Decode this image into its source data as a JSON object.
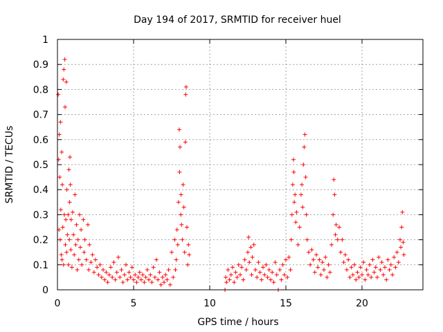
{
  "chart_data": {
    "type": "scatter",
    "title": "Day 194 of 2017, SRMTID for receiver huel",
    "xlabel": "GPS time / hours",
    "ylabel": "SRMTID / TECUs",
    "xlim": [
      0,
      24
    ],
    "ylim": [
      0,
      1
    ],
    "x_ticks": [
      0,
      5,
      10,
      15,
      20
    ],
    "x_tick_labels": [
      "0",
      "5",
      "10",
      "15",
      "20"
    ],
    "y_ticks": [
      0,
      0.1,
      0.2,
      0.3,
      0.4,
      0.5,
      0.6,
      0.7,
      0.8,
      0.9,
      1
    ],
    "y_tick_labels": [
      "0",
      "0.1",
      "0.2",
      "0.3",
      "0.4",
      "0.5",
      "0.6",
      "0.7",
      "0.8",
      "0.9",
      "1"
    ],
    "grid": true,
    "marker": "+",
    "color": "#ff0000",
    "series": [
      {
        "name": "SRMTID",
        "points": [
          [
            0.05,
            0.78
          ],
          [
            0.08,
            0.52
          ],
          [
            0.1,
            0.24
          ],
          [
            0.12,
            0.62
          ],
          [
            0.15,
            0.45
          ],
          [
            0.18,
            0.2
          ],
          [
            0.2,
            0.67
          ],
          [
            0.22,
            0.32
          ],
          [
            0.25,
            0.14
          ],
          [
            0.28,
            0.55
          ],
          [
            0.3,
            0.12
          ],
          [
            0.32,
            0.42
          ],
          [
            0.35,
            0.25
          ],
          [
            0.38,
            0.84
          ],
          [
            0.4,
            0.1
          ],
          [
            0.42,
            0.88
          ],
          [
            0.45,
            0.3
          ],
          [
            0.48,
            0.92
          ],
          [
            0.5,
            0.73
          ],
          [
            0.52,
            0.18
          ],
          [
            0.55,
            0.28
          ],
          [
            0.58,
            0.83
          ],
          [
            0.6,
            0.15
          ],
          [
            0.62,
            0.4
          ],
          [
            0.65,
            0.22
          ],
          [
            0.7,
            0.3
          ],
          [
            0.72,
            0.1
          ],
          [
            0.75,
            0.48
          ],
          [
            0.78,
            0.2
          ],
          [
            0.8,
            0.35
          ],
          [
            0.82,
            0.53
          ],
          [
            0.85,
            0.42
          ],
          [
            0.88,
            0.16
          ],
          [
            0.9,
            0.28
          ],
          [
            0.95,
            0.09
          ],
          [
            1.0,
            0.31
          ],
          [
            1.05,
            0.22
          ],
          [
            1.1,
            0.14
          ],
          [
            1.15,
            0.38
          ],
          [
            1.2,
            0.18
          ],
          [
            1.25,
            0.26
          ],
          [
            1.3,
            0.08
          ],
          [
            1.35,
            0.2
          ],
          [
            1.4,
            0.12
          ],
          [
            1.45,
            0.3
          ],
          [
            1.5,
            0.17
          ],
          [
            1.55,
            0.24
          ],
          [
            1.6,
            0.1
          ],
          [
            1.7,
            0.28
          ],
          [
            1.75,
            0.15
          ],
          [
            1.8,
            0.2
          ],
          [
            1.9,
            0.12
          ],
          [
            2.0,
            0.26
          ],
          [
            2.05,
            0.08
          ],
          [
            2.1,
            0.18
          ],
          [
            2.2,
            0.11
          ],
          [
            2.3,
            0.14
          ],
          [
            2.4,
            0.07
          ],
          [
            2.5,
            0.12
          ],
          [
            2.6,
            0.09
          ],
          [
            2.7,
            0.06
          ],
          [
            2.8,
            0.1
          ],
          [
            2.9,
            0.05
          ],
          [
            3.0,
            0.08
          ],
          [
            3.1,
            0.04
          ],
          [
            3.2,
            0.07
          ],
          [
            3.3,
            0.03
          ],
          [
            3.4,
            0.06
          ],
          [
            3.5,
            0.09
          ],
          [
            3.6,
            0.05
          ],
          [
            3.7,
            0.11
          ],
          [
            3.8,
            0.04
          ],
          [
            3.9,
            0.07
          ],
          [
            4.0,
            0.13
          ],
          [
            4.1,
            0.05
          ],
          [
            4.2,
            0.08
          ],
          [
            4.3,
            0.03
          ],
          [
            4.4,
            0.06
          ],
          [
            4.5,
            0.1
          ],
          [
            4.6,
            0.04
          ],
          [
            4.7,
            0.07
          ],
          [
            4.8,
            0.05
          ],
          [
            4.9,
            0.09
          ],
          [
            5.0,
            0.04
          ],
          [
            5.1,
            0.06
          ],
          [
            5.2,
            0.03
          ],
          [
            5.3,
            0.05
          ],
          [
            5.4,
            0.07
          ],
          [
            5.5,
            0.04
          ],
          [
            5.6,
            0.06
          ],
          [
            5.7,
            0.03
          ],
          [
            5.8,
            0.05
          ],
          [
            5.9,
            0.08
          ],
          [
            6.0,
            0.04
          ],
          [
            6.1,
            0.06
          ],
          [
            6.2,
            0.03
          ],
          [
            6.3,
            0.09
          ],
          [
            6.4,
            0.05
          ],
          [
            6.5,
            0.12
          ],
          [
            6.6,
            0.04
          ],
          [
            6.7,
            0.07
          ],
          [
            6.8,
            0.02
          ],
          [
            6.9,
            0.05
          ],
          [
            7.0,
            0.03
          ],
          [
            7.1,
            0.06
          ],
          [
            7.2,
            0.04
          ],
          [
            7.3,
            0.08
          ],
          [
            7.4,
            0.02
          ],
          [
            7.5,
            0.15
          ],
          [
            7.6,
            0.05
          ],
          [
            7.7,
            0.2
          ],
          [
            7.75,
            0.08
          ],
          [
            7.8,
            0.12
          ],
          [
            7.85,
            0.24
          ],
          [
            7.9,
            0.18
          ],
          [
            7.95,
            0.35
          ],
          [
            8.0,
            0.64
          ],
          [
            8.02,
            0.47
          ],
          [
            8.05,
            0.57
          ],
          [
            8.1,
            0.3
          ],
          [
            8.12,
            0.38
          ],
          [
            8.15,
            0.26
          ],
          [
            8.2,
            0.2
          ],
          [
            8.25,
            0.42
          ],
          [
            8.3,
            0.33
          ],
          [
            8.35,
            0.15
          ],
          [
            8.4,
            0.59
          ],
          [
            8.42,
            0.78
          ],
          [
            8.45,
            0.81
          ],
          [
            8.5,
            0.25
          ],
          [
            8.55,
            0.1
          ],
          [
            8.6,
            0.18
          ],
          [
            8.65,
            0.14
          ],
          [
            11.0,
            0.0
          ],
          [
            11.05,
            0.05
          ],
          [
            11.1,
            0.03
          ],
          [
            11.2,
            0.08
          ],
          [
            11.3,
            0.04
          ],
          [
            11.4,
            0.06
          ],
          [
            11.5,
            0.09
          ],
          [
            11.6,
            0.03
          ],
          [
            11.7,
            0.07
          ],
          [
            11.8,
            0.05
          ],
          [
            11.9,
            0.1
          ],
          [
            12.0,
            0.06
          ],
          [
            12.1,
            0.09
          ],
          [
            12.2,
            0.04
          ],
          [
            12.3,
            0.12
          ],
          [
            12.4,
            0.08
          ],
          [
            12.5,
            0.15
          ],
          [
            12.55,
            0.21
          ],
          [
            12.6,
            0.11
          ],
          [
            12.7,
            0.17
          ],
          [
            12.75,
            0.06
          ],
          [
            12.8,
            0.13
          ],
          [
            12.9,
            0.18
          ],
          [
            13.0,
            0.08
          ],
          [
            13.1,
            0.05
          ],
          [
            13.2,
            0.11
          ],
          [
            13.3,
            0.07
          ],
          [
            13.4,
            0.04
          ],
          [
            13.5,
            0.09
          ],
          [
            13.6,
            0.06
          ],
          [
            13.7,
            0.1
          ],
          [
            13.8,
            0.05
          ],
          [
            13.9,
            0.08
          ],
          [
            14.0,
            0.04
          ],
          [
            14.1,
            0.07
          ],
          [
            14.2,
            0.03
          ],
          [
            14.3,
            0.11
          ],
          [
            14.4,
            0.06
          ],
          [
            14.5,
            0.0
          ],
          [
            14.6,
            0.08
          ],
          [
            14.7,
            0.04
          ],
          [
            14.8,
            0.1
          ],
          [
            14.9,
            0.06
          ],
          [
            15.0,
            0.12
          ],
          [
            15.1,
            0.05
          ],
          [
            15.2,
            0.13
          ],
          [
            15.3,
            0.08
          ],
          [
            15.35,
            0.2
          ],
          [
            15.4,
            0.3
          ],
          [
            15.45,
            0.42
          ],
          [
            15.5,
            0.52
          ],
          [
            15.52,
            0.47
          ],
          [
            15.55,
            0.35
          ],
          [
            15.6,
            0.38
          ],
          [
            15.65,
            0.27
          ],
          [
            15.7,
            0.31
          ],
          [
            15.8,
            0.18
          ],
          [
            15.9,
            0.25
          ],
          [
            16.0,
            0.38
          ],
          [
            16.05,
            0.42
          ],
          [
            16.1,
            0.33
          ],
          [
            16.15,
            0.5
          ],
          [
            16.2,
            0.57
          ],
          [
            16.25,
            0.62
          ],
          [
            16.3,
            0.45
          ],
          [
            16.35,
            0.3
          ],
          [
            16.4,
            0.2
          ],
          [
            16.5,
            0.15
          ],
          [
            16.6,
            0.1
          ],
          [
            16.7,
            0.16
          ],
          [
            16.8,
            0.12
          ],
          [
            16.9,
            0.07
          ],
          [
            17.0,
            0.14
          ],
          [
            17.1,
            0.09
          ],
          [
            17.2,
            0.12
          ],
          [
            17.3,
            0.06
          ],
          [
            17.4,
            0.11
          ],
          [
            17.5,
            0.08
          ],
          [
            17.6,
            0.13
          ],
          [
            17.7,
            0.05
          ],
          [
            17.8,
            0.1
          ],
          [
            17.9,
            0.07
          ],
          [
            18.0,
            0.18
          ],
          [
            18.1,
            0.3
          ],
          [
            18.15,
            0.44
          ],
          [
            18.2,
            0.38
          ],
          [
            18.25,
            0.22
          ],
          [
            18.3,
            0.26
          ],
          [
            18.4,
            0.2
          ],
          [
            18.5,
            0.25
          ],
          [
            18.6,
            0.15
          ],
          [
            18.7,
            0.2
          ],
          [
            18.8,
            0.11
          ],
          [
            18.9,
            0.14
          ],
          [
            19.0,
            0.08
          ],
          [
            19.1,
            0.12
          ],
          [
            19.2,
            0.05
          ],
          [
            19.3,
            0.09
          ],
          [
            19.4,
            0.06
          ],
          [
            19.5,
            0.1
          ],
          [
            19.6,
            0.04
          ],
          [
            19.7,
            0.07
          ],
          [
            19.8,
            0.05
          ],
          [
            19.9,
            0.09
          ],
          [
            20.0,
            0.06
          ],
          [
            20.1,
            0.11
          ],
          [
            20.2,
            0.04
          ],
          [
            20.3,
            0.08
          ],
          [
            20.4,
            0.06
          ],
          [
            20.5,
            0.1
          ],
          [
            20.6,
            0.05
          ],
          [
            20.7,
            0.12
          ],
          [
            20.8,
            0.07
          ],
          [
            20.9,
            0.09
          ],
          [
            21.0,
            0.05
          ],
          [
            21.1,
            0.13
          ],
          [
            21.2,
            0.08
          ],
          [
            21.3,
            0.11
          ],
          [
            21.4,
            0.06
          ],
          [
            21.5,
            0.09
          ],
          [
            21.6,
            0.04
          ],
          [
            21.7,
            0.12
          ],
          [
            21.8,
            0.08
          ],
          [
            21.9,
            0.1
          ],
          [
            22.0,
            0.06
          ],
          [
            22.1,
            0.13
          ],
          [
            22.2,
            0.09
          ],
          [
            22.3,
            0.15
          ],
          [
            22.4,
            0.11
          ],
          [
            22.5,
            0.2
          ],
          [
            22.55,
            0.17
          ],
          [
            22.6,
            0.25
          ],
          [
            22.65,
            0.31
          ],
          [
            22.7,
            0.19
          ],
          [
            22.75,
            0.14
          ]
        ]
      }
    ]
  }
}
